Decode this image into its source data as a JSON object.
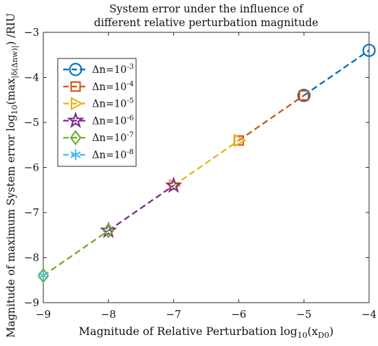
{
  "chart_data": {
    "type": "line",
    "title_lines": [
      "System error under the influence of",
      "different relative perturbation magnitude"
    ],
    "xlabel_main": "Magnitude of Relative Perturbation log",
    "xlabel_sub": "10",
    "xlabel_arg": "(x",
    "xlabel_arg_sub": "D0",
    "xlabel_close": ")",
    "ylabel_main": "Magnitude of maximum System error log",
    "ylabel_sub": "10",
    "ylabel_mid": "(max",
    "ylabel_mid_sub": "|δ(Δnw)|",
    "ylabel_end": ") /RIU",
    "xlim": [
      -9,
      -4
    ],
    "ylim": [
      -9,
      -3
    ],
    "xticks": [
      "−9",
      "−8",
      "−7",
      "−6",
      "−5",
      "−4"
    ],
    "yticks": [
      "−9",
      "−8",
      "−7",
      "−6",
      "−5",
      "−4",
      "−3"
    ],
    "legend_position": "top-left",
    "series": [
      {
        "name": "Δn=10",
        "exp": "-3",
        "color": "#0072BD",
        "marker": "circle",
        "x": [
          -5,
          -4
        ],
        "y": [
          -4.4,
          -3.4
        ]
      },
      {
        "name": "Δn=10",
        "exp": "-4",
        "color": "#D95319",
        "marker": "square",
        "x": [
          -6,
          -5
        ],
        "y": [
          -5.4,
          -4.4
        ]
      },
      {
        "name": "Δn=10",
        "exp": "-5",
        "color": "#EDB120",
        "marker": "triangle-right",
        "x": [
          -7,
          -6
        ],
        "y": [
          -6.4,
          -5.4
        ]
      },
      {
        "name": "Δn=10",
        "exp": "-6",
        "color": "#7E2F8E",
        "marker": "pentagram",
        "x": [
          -8,
          -7
        ],
        "y": [
          -7.4,
          -6.4
        ]
      },
      {
        "name": "Δn=10",
        "exp": "-7",
        "color": "#77AC30",
        "marker": "diamond",
        "x": [
          -9,
          -8
        ],
        "y": [
          -8.4,
          -7.4
        ]
      },
      {
        "name": "Δn=10",
        "exp": "-8",
        "color": "#4DBEEE",
        "marker": "asterisk",
        "x": [
          -9
        ],
        "y": [
          -8.4
        ]
      }
    ]
  }
}
